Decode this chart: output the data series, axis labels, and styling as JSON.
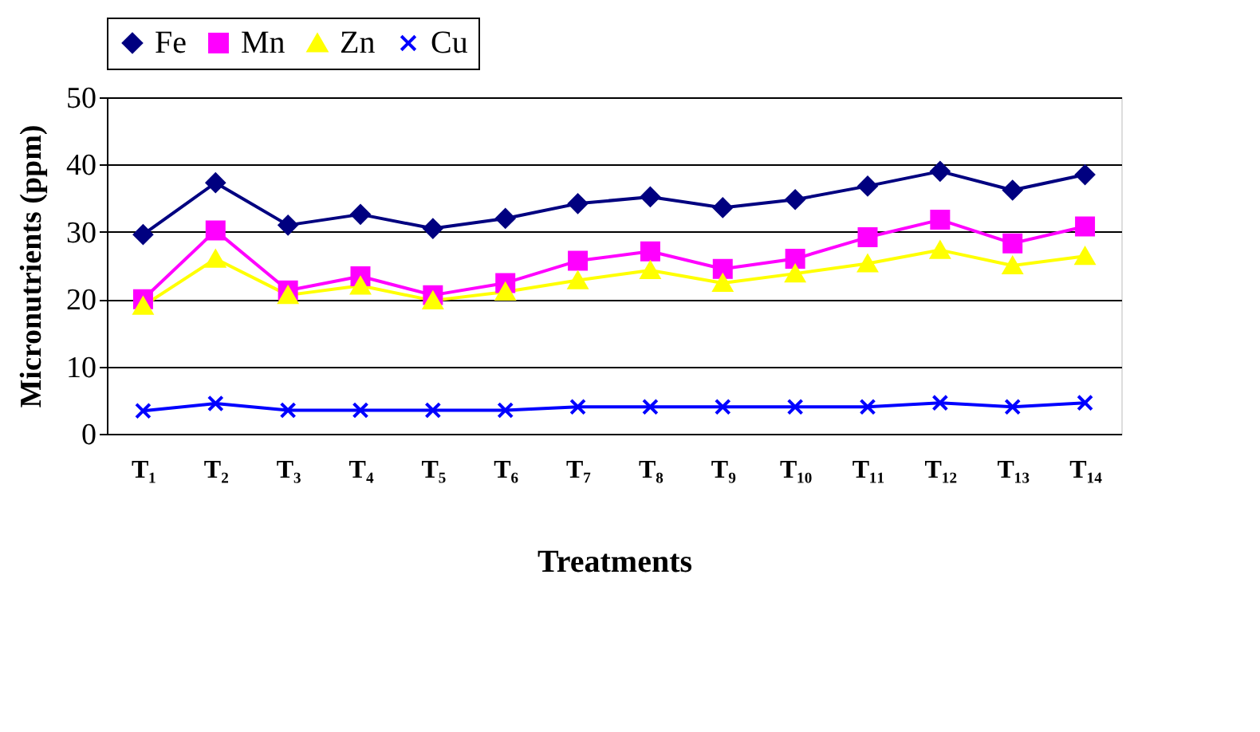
{
  "chart_data": {
    "type": "line",
    "xlabel": "Treatments",
    "ylabel": "Micronutrients (ppm)",
    "categories": [
      "T₁",
      "T₂",
      "T₃",
      "T₄",
      "T₅",
      "T₆",
      "T₇",
      "T₈",
      "T₉",
      "T₁₀",
      "T₁₁",
      "T₁₂",
      "T₁₃",
      "T₁₄"
    ],
    "series": [
      {
        "name": "Fe",
        "color": "#000080",
        "marker": "diamond",
        "values": [
          29.6,
          37.3,
          31,
          32.6,
          30.5,
          32,
          34.2,
          35.2,
          33.6,
          34.8,
          36.8,
          39,
          36.2,
          38.5
        ]
      },
      {
        "name": "Mn",
        "color": "#ff00ff",
        "marker": "square",
        "values": [
          20,
          30.2,
          21.3,
          23.4,
          20.6,
          22.4,
          25.7,
          27.1,
          24.5,
          26,
          29.2,
          31.8,
          28.3,
          30.8
        ]
      },
      {
        "name": "Zn",
        "color": "#ffff00",
        "marker": "triangle",
        "values": [
          19,
          26,
          20.6,
          22,
          19.8,
          21.1,
          22.8,
          24.3,
          22.4,
          23.8,
          25.3,
          27.3,
          25,
          26.4
        ]
      },
      {
        "name": "Cu",
        "color": "#0000ff",
        "marker": "cross",
        "values": [
          3.4,
          4.5,
          3.5,
          3.5,
          3.5,
          3.5,
          4,
          4,
          4,
          4,
          4,
          4.6,
          4,
          4.6
        ]
      }
    ],
    "ylim": [
      0,
      50
    ],
    "yticks": [
      0,
      10,
      20,
      30,
      40,
      50
    ],
    "grid": "y",
    "legend": "top",
    "line_style": "solid"
  }
}
